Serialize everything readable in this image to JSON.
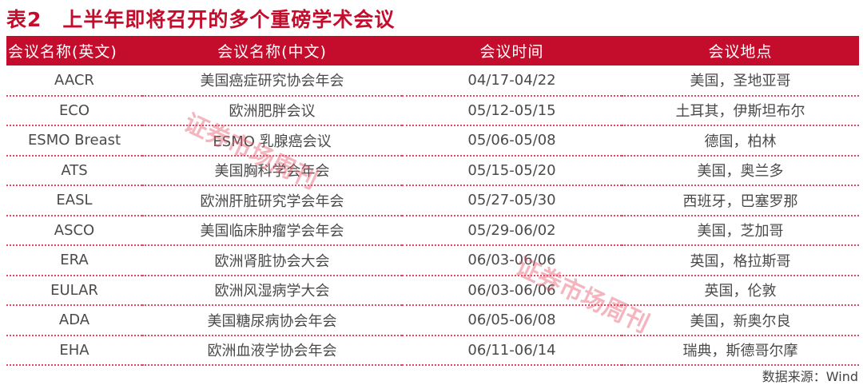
{
  "title": "表2　上半年即将召开的多个重磅学术会议",
  "headers": [
    "会议名称(英文)",
    "会议名称(中文)",
    "会议时间",
    "会议地点"
  ],
  "rows": [
    [
      "AACR",
      "美国癌症研究协会年会",
      "04/17-04/22",
      "美国，圣地亚哥"
    ],
    [
      "ECO",
      "欧洲肥胖会议",
      "05/12-05/15",
      "土耳其，伊斯坦布尔"
    ],
    [
      "ESMO Breast",
      "ESMO 乳腺癌会议",
      "05/06-05/08",
      "德国，柏林"
    ],
    [
      "ATS",
      "美国胸科学会年会",
      "05/15-05/20",
      "美国，奥兰多"
    ],
    [
      "EASL",
      "欧洲肝脏研究学会年会",
      "05/27-05/30",
      "西班牙，巴塞罗那"
    ],
    [
      "ASCO",
      "美国临床肿瘤学会年会",
      "05/29-06/02",
      "美国，芝加哥"
    ],
    [
      "ERA",
      "欧洲肾脏协会大会",
      "06/03-06/06",
      "英国，格拉斯哥"
    ],
    [
      "EULAR",
      "欧洲风湿病学大会",
      "06/03-06/06",
      "英国，伦敦"
    ],
    [
      "ADA",
      "美国糖尿病协会年会",
      "06/05-06/08",
      "美国，新奥尔良"
    ],
    [
      "EHA",
      "欧洲血液学协会年会",
      "06/11-06/14",
      "瑞典，斯德哥尔摩"
    ]
  ],
  "source": "数据来源：Wind",
  "watermark": "证券市场周刊",
  "colors": {
    "accent": "#c40d2c"
  }
}
